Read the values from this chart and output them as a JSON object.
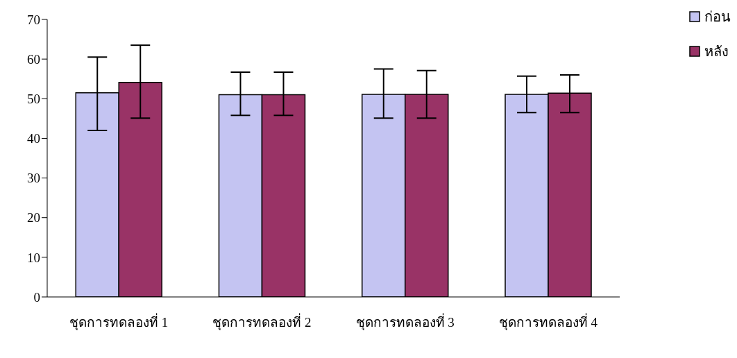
{
  "chart_data": {
    "type": "bar",
    "categories": [
      "ชุดการทดลองที่ 1",
      "ชุดการทดลองที่ 2",
      "ชุดการทดลองที่ 3",
      "ชุดการทดลองที่ 4"
    ],
    "series": [
      {
        "name": "ก่อน",
        "color": "#c4c4f2",
        "values": [
          51.5,
          51.0,
          51.1,
          51.1
        ],
        "errors": [
          [
            42.0,
            60.5
          ],
          [
            45.8,
            56.7
          ],
          [
            45.1,
            57.5
          ],
          [
            46.5,
            55.7
          ]
        ]
      },
      {
        "name": "หลัง",
        "color": "#993366",
        "values": [
          54.1,
          51.0,
          51.1,
          51.4
        ],
        "errors": [
          [
            45.1,
            63.5
          ],
          [
            45.8,
            56.7
          ],
          [
            45.1,
            57.1
          ],
          [
            46.5,
            56.0
          ]
        ]
      }
    ],
    "ylim": [
      0,
      70
    ],
    "yticks": [
      0,
      10,
      20,
      30,
      40,
      50,
      60,
      70
    ],
    "grid": false,
    "legend": "top right"
  }
}
